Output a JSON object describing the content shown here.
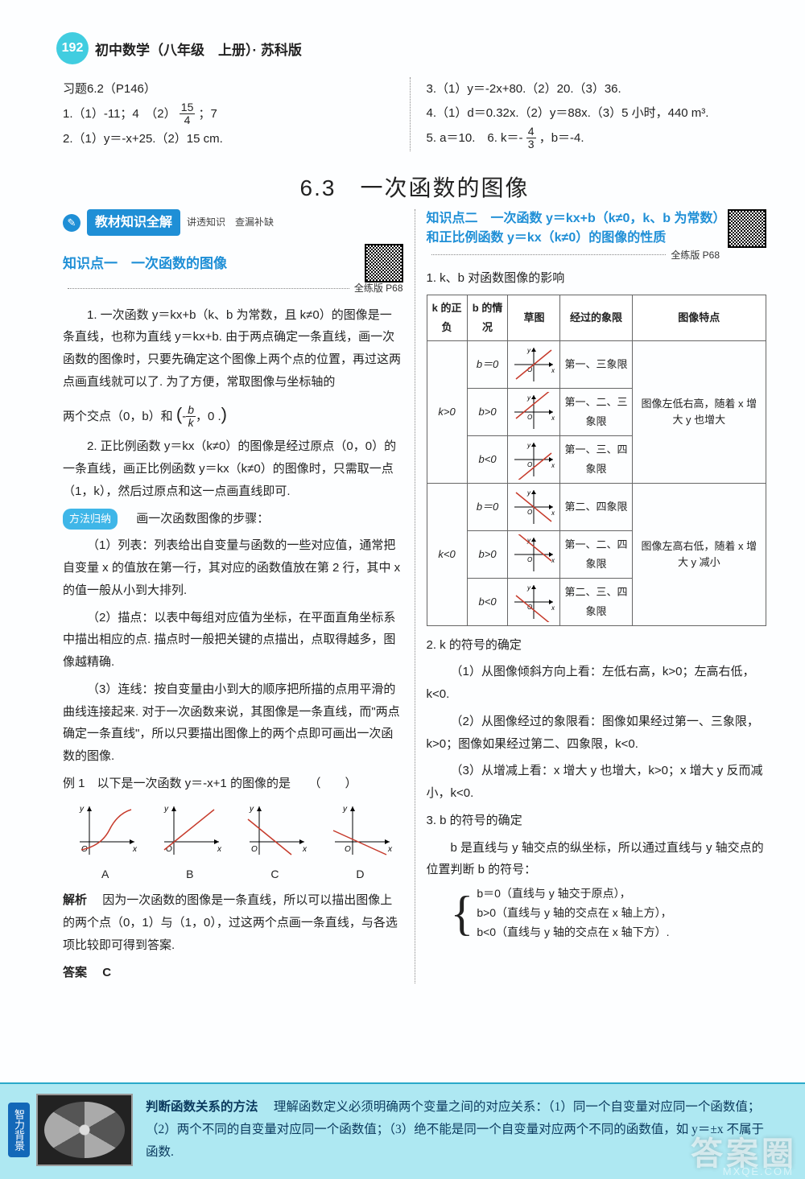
{
  "page": {
    "number": "192",
    "title": "初中数学（八年级　上册）· 苏科版"
  },
  "topLeft": {
    "ex": "习题6.2（P146）",
    "l1": "1.（1）-11；4　（2）",
    "l1b": "；7",
    "frac1": {
      "num": "15",
      "den": "4"
    },
    "l2": "2.（1）y＝-x+25.（2）15 cm."
  },
  "topRight": {
    "l3": "3.（1）y＝-2x+80.（2）20.（3）36.",
    "l4": "4.（1）d＝0.32x.（2）y＝88x.（3）5 小时，440 m³.",
    "l5a": "5. a＝10.　6. k＝-",
    "frac2": {
      "num": "4",
      "den": "3"
    },
    "l5b": "，b＝-4."
  },
  "sectionTitle": "6.3　一次函数的图像",
  "left": {
    "bannerIcon": "✎",
    "banner": "教材知识全解",
    "bannerSub": "讲透知识　查漏补缺",
    "kp1Title": "知识点一　一次函数的图像",
    "kp1Ref": "全练版 P68",
    "p1": "1. 一次函数 y＝kx+b（k、b 为常数，且 k≠0）的图像是一条直线，也称为直线 y＝kx+b. 由于两点确定一条直线，画一次函数的图像时，只要先确定这个图像上两个点的位置，再过这两点画直线就可以了. 为了方便，常取图像与坐标轴的",
    "p1b": "两个交点（0，b）和",
    "p1c": "，0 .",
    "fracb": {
      "num": "b",
      "den": "k"
    },
    "p2": "2. 正比例函数 y＝kx（k≠0）的图像是经过原点（0，0）的一条直线，画正比例函数 y＝kx（k≠0）的图像时，只需取一点（1，k），然后过原点和这一点画直线即可.",
    "methodTag": "方法归纳",
    "methodTitle": "　画一次函数图像的步骤：",
    "m1": "（1）列表：列表给出自变量与函数的一些对应值，通常把自变量 x 的值放在第一行，其对应的函数值放在第 2 行，其中 x 的值一般从小到大排列.",
    "m2": "（2）描点：以表中每组对应值为坐标，在平面直角坐标系中描出相应的点. 描点时一般把关键的点描出，点取得越多，图像越精确.",
    "m3": "（3）连线：按自变量由小到大的顺序把所描的点用平滑的曲线连接起来. 对于一次函数来说，其图像是一条直线，而\"两点确定一条直线\"，所以只要描出图像上的两个点即可画出一次函数的图像.",
    "ex1": "例 1　以下是一次函数 y＝-x+1 的图像的是　　（　　）",
    "labels": [
      "A",
      "B",
      "C",
      "D"
    ],
    "analysisLabel": "解析",
    "analysis": "　因为一次函数的图像是一条直线，所以可以描出图像上的两个点（0，1）与（1，0），过这两个点画一条直线，与各选项比较即可得到答案.",
    "answerLabel": "答案",
    "answer": "　C"
  },
  "right": {
    "kp2Title": "知识点二　一次函数 y＝kx+b（k≠0，k、b 为常数）和正比例函数 y＝kx（k≠0）的图像的性质",
    "kp2Ref": "全练版 P68",
    "tHead1": "1. k、b 对函数图像的影响",
    "th": [
      "k 的正负",
      "b 的情况",
      "草图",
      "经过的象限",
      "图像特点"
    ],
    "rows": [
      {
        "k": "k>0",
        "b": "b＝0",
        "q": "第一、三象限",
        "slope": "pos",
        "yint": 0
      },
      {
        "k": "",
        "b": "b>0",
        "q": "第一、二、三象限",
        "slope": "pos",
        "yint": 10
      },
      {
        "k": "",
        "b": "b<0",
        "q": "第一、三、四象限",
        "slope": "pos",
        "yint": -10
      },
      {
        "k": "k<0",
        "b": "b＝0",
        "q": "第二、四象限",
        "slope": "neg",
        "yint": 0
      },
      {
        "k": "",
        "b": "b>0",
        "q": "第一、二、四象限",
        "slope": "neg",
        "yint": 10
      },
      {
        "k": "",
        "b": "b<0",
        "q": "第二、三、四象限",
        "slope": "neg",
        "yint": -10
      }
    ],
    "feat1": "图像左低右高，随着 x 增大 y 也增大",
    "feat2": "图像左高右低，随着 x 增大 y 减小",
    "h2": "2. k 的符号的确定",
    "h2p1": "（1）从图像倾斜方向上看：左低右高，k>0；左高右低，k<0.",
    "h2p2": "（2）从图像经过的象限看：图像如果经过第一、三象限，k>0；图像如果经过第二、四象限，k<0.",
    "h2p3": "（3）从增减上看：x 增大 y 也增大，k>0；x 增大 y 反而减小，k<0.",
    "h3": "3. b 的符号的确定",
    "h3p": "b 是直线与 y 轴交点的纵坐标，所以通过直线与 y 轴交点的位置判断 b 的符号：",
    "brace": [
      "b＝0（直线与 y 轴交于原点），",
      "b>0（直线与 y 轴的交点在 x 轴上方），",
      "b<0（直线与 y 轴的交点在 x 轴下方）."
    ]
  },
  "footer": {
    "tab": "智力背景",
    "title": "判断函数关系的方法",
    "text": "　理解函数定义必须明确两个变量之间的对应关系：（1）同一个自变量对应同一个函数值；（2）两个不同的自变量对应同一个函数值；（3）绝不能是同一个自变量对应两个不同的函数值，如 y＝±x 不属于函数."
  },
  "watermark": {
    "main": "答案圈",
    "sub": "MXQE.COM"
  },
  "colors": {
    "accent": "#1f8fd6",
    "headerCircle": "#41cde0",
    "footerBg": "#aee8f2",
    "line": "#c63a2b"
  },
  "exampleGraphs": [
    {
      "type": "curve-up"
    },
    {
      "type": "line-pos"
    },
    {
      "type": "line-neg-b1"
    },
    {
      "type": "line-neg-b-1"
    }
  ]
}
